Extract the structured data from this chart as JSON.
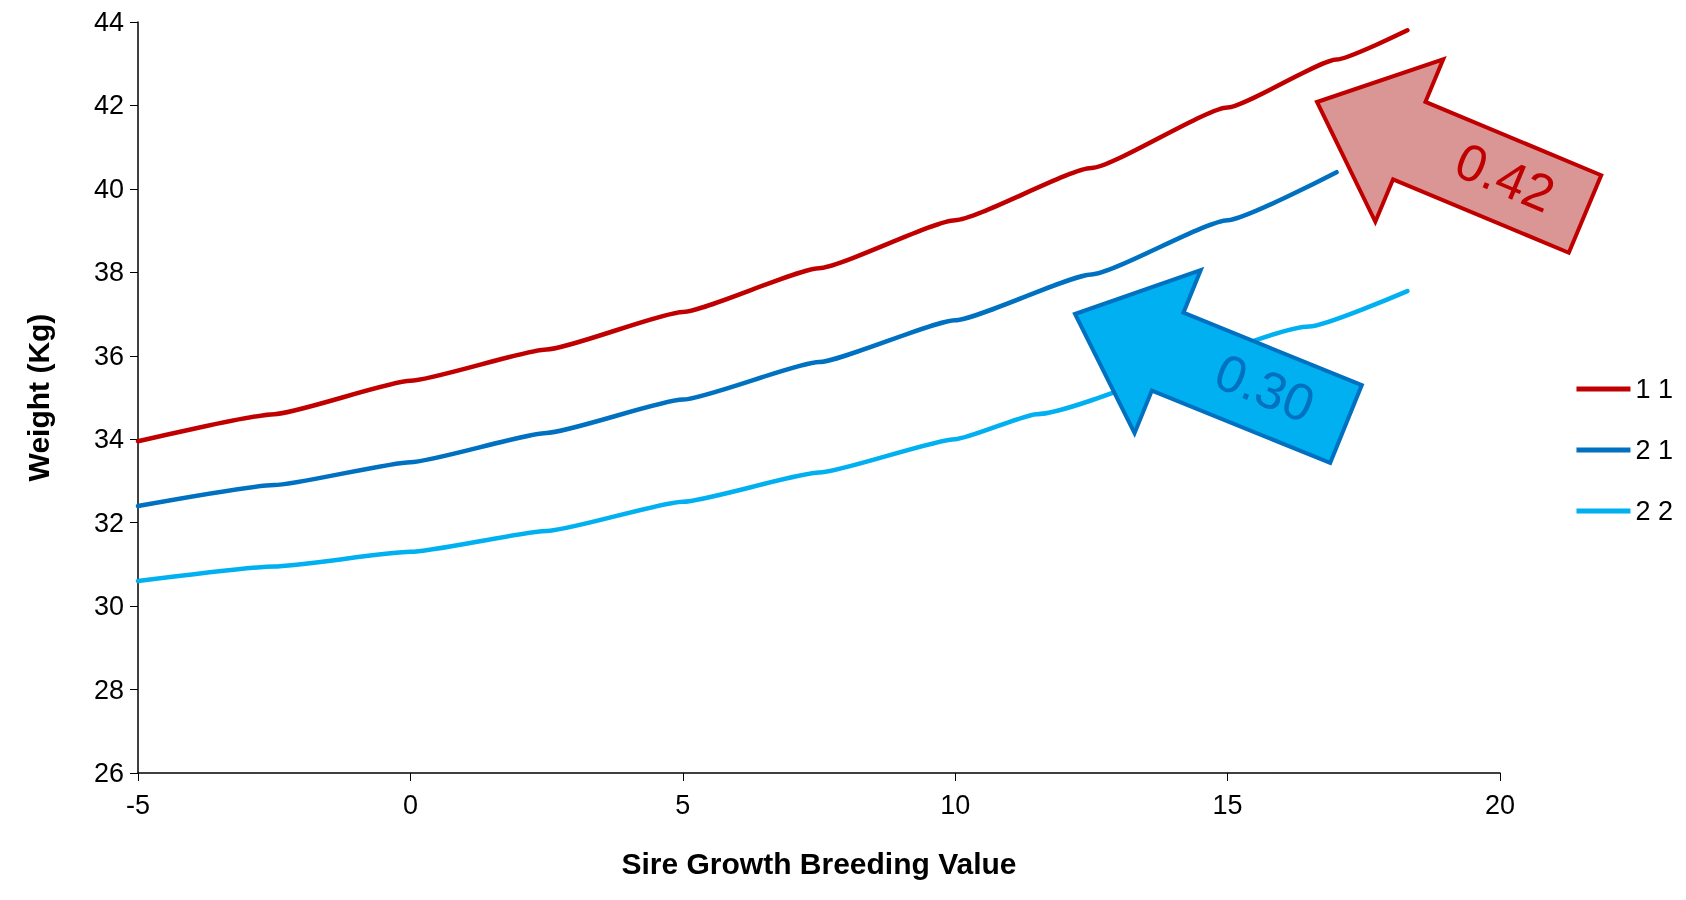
{
  "chart_data": {
    "type": "line",
    "xlabel": "Sire Growth Breeding Value",
    "ylabel": "Weight (Kg)",
    "xlim": [
      -5,
      20
    ],
    "xticks": [
      -5,
      0,
      5,
      10,
      15,
      20
    ],
    "ylim": [
      26,
      44
    ],
    "yticks": [
      26,
      28,
      30,
      32,
      34,
      36,
      38,
      40,
      42,
      44
    ],
    "grid": false,
    "legend": "right",
    "marker": "none",
    "line_style": "solid",
    "series": [
      {
        "name": "1 1",
        "color": "#c00000",
        "x": [
          -5,
          -2.5,
          0,
          2.5,
          5,
          7.5,
          10,
          12.5,
          15,
          17,
          18.3
        ],
        "values": [
          33.95,
          34.6,
          35.4,
          36.15,
          37.05,
          38.1,
          39.25,
          40.5,
          41.95,
          43.1,
          43.8
        ]
      },
      {
        "name": "2 1",
        "color": "#0070c0",
        "x": [
          -5,
          -2.5,
          0,
          2.5,
          5,
          7.5,
          10,
          12.5,
          15,
          17
        ],
        "values": [
          32.4,
          32.9,
          33.45,
          34.15,
          34.95,
          35.85,
          36.85,
          37.95,
          39.25,
          40.4
        ]
      },
      {
        "name": "2 2",
        "color": "#00b0f0",
        "x": [
          -5,
          -2.5,
          0,
          2.5,
          5,
          7.5,
          10,
          11.5,
          16.5,
          18.3
        ],
        "values": [
          30.6,
          30.95,
          31.3,
          31.8,
          32.5,
          33.2,
          34.0,
          34.6,
          36.7,
          37.55
        ]
      }
    ],
    "annotations": [
      "0.42",
      "0.30"
    ]
  }
}
